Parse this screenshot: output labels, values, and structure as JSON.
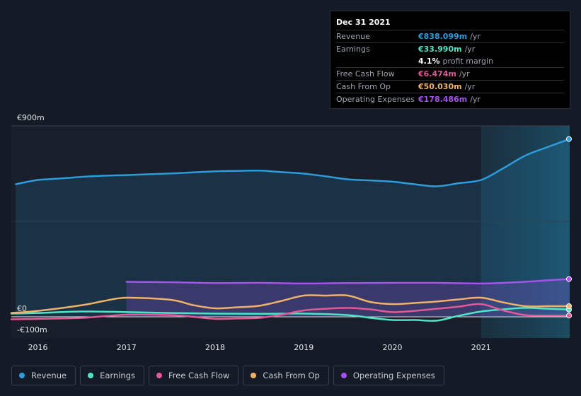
{
  "tooltip": {
    "date": "Dec 31 2021",
    "rows": [
      {
        "label": "Revenue",
        "value": "€838.099m",
        "unit": "/yr",
        "color": "#2d9cdb"
      },
      {
        "label": "Earnings",
        "value": "€33.990m",
        "unit": "/yr",
        "color": "#4ee5c6"
      },
      {
        "label": "",
        "value": "4.1%",
        "unit": "profit margin",
        "color": "#ffffff"
      },
      {
        "label": "Free Cash Flow",
        "value": "€6.474m",
        "unit": "/yr",
        "color": "#e05a96"
      },
      {
        "label": "Cash From Op",
        "value": "€50.030m",
        "unit": "/yr",
        "color": "#f0b16b"
      },
      {
        "label": "Operating Expenses",
        "value": "€178.486m",
        "unit": "/yr",
        "color": "#a651f0"
      }
    ]
  },
  "legend": [
    {
      "label": "Revenue",
      "color": "#2d9cdb"
    },
    {
      "label": "Earnings",
      "color": "#4ee5c6"
    },
    {
      "label": "Free Cash Flow",
      "color": "#e05a96"
    },
    {
      "label": "Cash From Op",
      "color": "#f0b16b"
    },
    {
      "label": "Operating Expenses",
      "color": "#a651f0"
    }
  ],
  "chart_data": {
    "type": "line",
    "y_tick_labels": [
      "€900m",
      "€0",
      "-€100m"
    ],
    "ylim": [
      -100,
      900
    ],
    "x_tick_labels": [
      "2016",
      "2017",
      "2018",
      "2019",
      "2020",
      "2021"
    ],
    "x_ticks": [
      2016,
      2017,
      2018,
      2019,
      2020,
      2021
    ],
    "xlim": [
      2015.7,
      2022.0
    ],
    "highlight_start": 2021.0,
    "series": [
      {
        "name": "Revenue",
        "color": "#2d9cdb",
        "fill": true,
        "x": [
          2015.75,
          2016.0,
          2016.25,
          2016.5,
          2016.75,
          2017.0,
          2017.25,
          2017.5,
          2017.75,
          2018.0,
          2018.25,
          2018.5,
          2018.75,
          2019.0,
          2019.25,
          2019.5,
          2019.75,
          2020.0,
          2020.25,
          2020.5,
          2020.75,
          2021.0,
          2021.25,
          2021.5,
          2021.75,
          2022.0
        ],
        "y": [
          625,
          645,
          652,
          660,
          665,
          668,
          672,
          676,
          681,
          686,
          688,
          689,
          682,
          675,
          662,
          648,
          643,
          637,
          625,
          615,
          630,
          645,
          700,
          760,
          800,
          838
        ]
      },
      {
        "name": "Operating Expenses",
        "color": "#a651f0",
        "fill": true,
        "x": [
          2017.0,
          2017.25,
          2017.5,
          2017.75,
          2018.0,
          2018.5,
          2019.0,
          2019.5,
          2020.0,
          2020.5,
          2021.0,
          2021.25,
          2021.5,
          2021.75,
          2022.0
        ],
        "y": [
          165,
          164,
          163,
          161,
          159,
          160,
          157,
          159,
          160,
          160,
          157,
          160,
          165,
          172,
          178
        ]
      },
      {
        "name": "Earnings",
        "color": "#4ee5c6",
        "fill": false,
        "x": [
          2015.7,
          2016.0,
          2016.5,
          2017.0,
          2017.5,
          2018.0,
          2018.5,
          2019.0,
          2019.5,
          2019.75,
          2020.0,
          2020.25,
          2020.5,
          2020.75,
          2021.0,
          2021.25,
          2021.5,
          2021.75,
          2022.0
        ],
        "y": [
          15,
          18,
          25,
          22,
          18,
          15,
          14,
          15,
          8,
          -5,
          -15,
          -15,
          -18,
          5,
          25,
          35,
          42,
          38,
          34
        ]
      },
      {
        "name": "Cash From Op",
        "color": "#f0b16b",
        "fill": false,
        "x": [
          2015.7,
          2016.0,
          2016.5,
          2016.75,
          2017.0,
          2017.5,
          2017.75,
          2018.0,
          2018.25,
          2018.5,
          2018.75,
          2019.0,
          2019.25,
          2019.5,
          2019.75,
          2020.0,
          2020.25,
          2020.5,
          2020.75,
          2021.0,
          2021.25,
          2021.5,
          2021.75,
          2022.0
        ],
        "y": [
          18,
          28,
          55,
          75,
          90,
          80,
          55,
          40,
          45,
          52,
          75,
          100,
          100,
          100,
          70,
          60,
          65,
          72,
          82,
          90,
          68,
          50,
          50,
          50
        ]
      },
      {
        "name": "Free Cash Flow",
        "color": "#e05a96",
        "fill": false,
        "x": [
          2015.7,
          2016.0,
          2016.5,
          2017.0,
          2017.5,
          2017.75,
          2018.0,
          2018.25,
          2018.5,
          2018.75,
          2019.0,
          2019.25,
          2019.5,
          2019.75,
          2020.0,
          2020.25,
          2020.5,
          2020.75,
          2021.0,
          2021.25,
          2021.5,
          2021.75,
          2022.0
        ],
        "y": [
          -12,
          -10,
          -5,
          10,
          8,
          0,
          -10,
          -8,
          -5,
          10,
          30,
          38,
          42,
          35,
          22,
          28,
          38,
          48,
          60,
          30,
          8,
          6,
          6
        ]
      }
    ]
  }
}
